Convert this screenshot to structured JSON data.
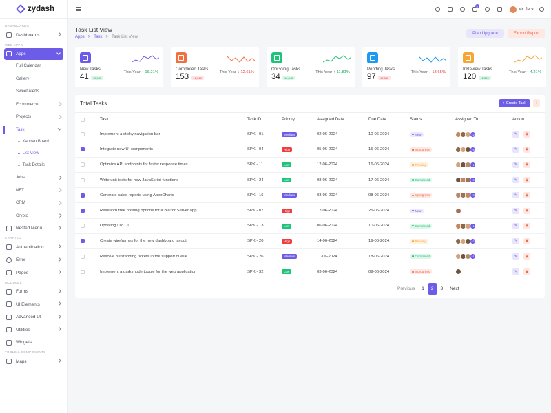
{
  "app": {
    "brand": "zydash",
    "user": "Mr. Jack",
    "notif_count": "5"
  },
  "sidebar": {
    "sec_dashboards": "DASHBOARDS",
    "dashboards": "Dashboards",
    "sec_webapps": "WEB APPS",
    "apps": "Apps",
    "full_calendar": "Full Calendar",
    "gallery": "Gallery",
    "sweet_alerts": "Sweet Alerts",
    "ecommerce": "Ecommerce",
    "projects": "Projects",
    "task": "Task",
    "kanban": "Kanban Board",
    "list_view": "List View",
    "task_details": "Task Details",
    "jobs": "Jobs",
    "nft": "NFT",
    "crm": "CRM",
    "crypto": "Crypto",
    "nested_menu": "Nested Menu",
    "sec_crafted": "CRAFTED",
    "authentication": "Authentication",
    "error": "Error",
    "pages": "Pages",
    "sec_modules": "MODULES",
    "forms": "Forms",
    "ui_elements": "UI Elements",
    "advanced_ui": "Advanced UI",
    "utilities": "Utilities",
    "widgets": "Widgets",
    "sec_tools": "TOOLS & COMPONENTS",
    "maps": "Maps"
  },
  "page": {
    "title": "Task List View",
    "crumb1": "Apps",
    "crumb_sep": ">",
    "crumb2": "Task",
    "crumb3": "Task List View",
    "plan_upgrade": "Plan Upgrade",
    "export_report": "Export Report"
  },
  "cards": [
    {
      "name": "New Tasks",
      "value": "41",
      "pill": "12,345",
      "year": "This Year",
      "change": "↑ 16.21%",
      "color": "#6c5ce7",
      "trend": "up"
    },
    {
      "name": "Completed Tasks",
      "value": "153",
      "pill": "12,345",
      "year": "This Year",
      "change": "↓ 12.61%",
      "color": "#f07040",
      "trend": "down"
    },
    {
      "name": "OnGoing Tasks",
      "value": "34",
      "pill": "12,345",
      "year": "This Year",
      "change": "↑ 11.81%",
      "color": "#1fc47a",
      "trend": "up"
    },
    {
      "name": "Pending Tasks",
      "value": "97",
      "pill": "12,345",
      "year": "This Year",
      "change": "↓ 13.65%",
      "color": "#1e9bf0",
      "trend": "down"
    },
    {
      "name": "InReview Tasks",
      "value": "120",
      "pill": "12,345",
      "year": "This Year",
      "change": "↑ 4.21%",
      "color": "#f7a534",
      "trend": "up"
    }
  ],
  "table": {
    "title": "Total Tasks",
    "create": "Create Task",
    "headers": [
      "Task",
      "Task ID",
      "Priority",
      "Assigned Date",
      "Due Date",
      "Status",
      "Assigned To",
      "Action"
    ],
    "rows": [
      {
        "task": "Implement a sticky navigation bar",
        "id": "SPK - 01",
        "priority": "Medium",
        "assigned": "02-06-2024",
        "due": "10-06-2024",
        "status": "New",
        "checked": false,
        "more": "+2"
      },
      {
        "task": "Integrate new UI components",
        "id": "SPK - 04",
        "priority": "High",
        "assigned": "05-06-2024",
        "due": "15-06-2024",
        "status": "Inprogress",
        "checked": true,
        "more": "+4"
      },
      {
        "task": "Optimize API endpoints for faster response times",
        "id": "SPK - 11",
        "priority": "Low",
        "assigned": "12-06-2024",
        "due": "16-06-2024",
        "status": "Pending",
        "checked": false,
        "more": "+1"
      },
      {
        "task": "Write unit tests for new JavaScript functions",
        "id": "SPK - 24",
        "priority": "Low",
        "assigned": "08-06-2024",
        "due": "17-06-2024",
        "status": "Completed",
        "checked": false,
        "more": "+5"
      },
      {
        "task": "Generate sales reports using ApexCharts",
        "id": "SPK - 16",
        "priority": "Medium",
        "assigned": "03-06-2024",
        "due": "08-06-2024",
        "status": "Inprogress",
        "checked": true,
        "more": "+3"
      },
      {
        "task": "Research free hosting options for a Blazor Server app",
        "id": "SPK - 07",
        "priority": "High",
        "assigned": "12-06-2024",
        "due": "25-06-2024",
        "status": "New",
        "checked": true,
        "more": ""
      },
      {
        "task": "Updating Old UI",
        "id": "SPK - 13",
        "priority": "Low",
        "assigned": "06-06-2024",
        "due": "10-06-2024",
        "status": "Completed",
        "checked": false,
        "more": "+1"
      },
      {
        "task": "Create wireframes for the new dashboard layout",
        "id": "SPK - 20",
        "priority": "High",
        "assigned": "14-06-2024",
        "due": "19-06-2024",
        "status": "Pending",
        "checked": true,
        "more": "+2"
      },
      {
        "task": "Resolve outstanding tickets in the support queue",
        "id": "SPK - 26",
        "priority": "Medium",
        "assigned": "11-06-2024",
        "due": "18-06-2024",
        "status": "Completed",
        "checked": false,
        "more": "+1"
      },
      {
        "task": "Implement a dark mode toggle for the web application",
        "id": "SPK - 32",
        "priority": "Low",
        "assigned": "03-06-2024",
        "due": "09-06-2024",
        "status": "Inprogress",
        "checked": false,
        "more": ""
      }
    ]
  },
  "pagination": {
    "prev": "Previous",
    "p1": "1",
    "p2": "2",
    "p3": "3",
    "next": "Next"
  },
  "colors": {
    "accent": "#6c5ce7",
    "Medium": "#6c5ce7",
    "High": "#ef3e3e",
    "Low": "#1fc47a",
    "New": "#6c5ce7",
    "Inprogress": "#ef6a4d",
    "Pending": "#f7a534",
    "Completed": "#1fc47a"
  }
}
